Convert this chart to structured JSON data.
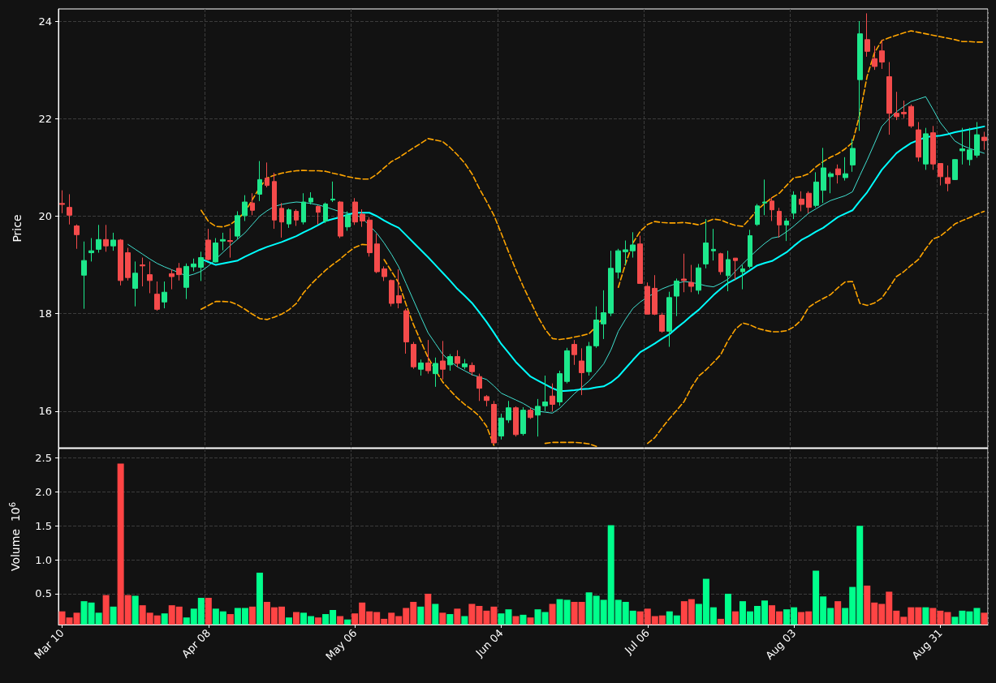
{
  "chart_data": [
    {
      "type": "candlestick",
      "ylabel": "Price",
      "categories": [
        null,
        null,
        null,
        null,
        null,
        null,
        null,
        null,
        null,
        null,
        null,
        null,
        null,
        null,
        null,
        null,
        null,
        null,
        null,
        null,
        null,
        null,
        null,
        null,
        null,
        null,
        null,
        null,
        null,
        null,
        null,
        null,
        null,
        null,
        null,
        null,
        null,
        null,
        null,
        null,
        null,
        null,
        null,
        null,
        null,
        null,
        null,
        null,
        null,
        null,
        null,
        null,
        null,
        null,
        null,
        null,
        null,
        null,
        null,
        null,
        null,
        null,
        null,
        null,
        null,
        null,
        null,
        null,
        null,
        null,
        null,
        null,
        null,
        null,
        null,
        null,
        null,
        null,
        null,
        null,
        null,
        null,
        null,
        null,
        null,
        null,
        null,
        null,
        null,
        null,
        null,
        null,
        null,
        null,
        null,
        null,
        null,
        null,
        null,
        null,
        null,
        null,
        null,
        null,
        null,
        null,
        null,
        null,
        null,
        null,
        null,
        null,
        null,
        null,
        null,
        null,
        null,
        null,
        null,
        null,
        null,
        null,
        null,
        null,
        null,
        null,
        null
      ],
      "ylim": [
        15.25,
        24.25
      ],
      "yticks": [
        16,
        18,
        20,
        22,
        24
      ],
      "grid": true,
      "tick_labels": "y",
      "marker": "none",
      "series": [
        {
          "type": "candlestick",
          "ohlc": [
            [
              20.26,
              20.53,
              20.06,
              20.24
            ],
            [
              20.18,
              20.45,
              19.83,
              20.02
            ],
            [
              19.8,
              19.83,
              19.33,
              19.62
            ],
            [
              18.79,
              19.48,
              18.1,
              19.09
            ],
            [
              19.25,
              19.55,
              19.07,
              19.29
            ],
            [
              19.32,
              19.82,
              19.25,
              19.52
            ],
            [
              19.52,
              19.82,
              19.27,
              19.39
            ],
            [
              19.39,
              19.66,
              19.29,
              19.51
            ],
            [
              19.51,
              19.53,
              18.58,
              18.68
            ],
            [
              19.25,
              19.35,
              18.68,
              18.74
            ],
            [
              18.52,
              19.07,
              18.15,
              18.83
            ],
            [
              19.0,
              19.15,
              18.56,
              18.98
            ],
            [
              18.8,
              19.07,
              18.42,
              18.68
            ],
            [
              18.4,
              18.66,
              18.06,
              18.09
            ],
            [
              18.24,
              18.66,
              18.11,
              18.44
            ],
            [
              18.82,
              18.91,
              18.5,
              18.76
            ],
            [
              18.93,
              19.04,
              18.68,
              18.8
            ],
            [
              18.54,
              19.03,
              18.3,
              18.97
            ],
            [
              18.96,
              19.13,
              18.87,
              19.02
            ],
            [
              18.95,
              19.27,
              18.67,
              19.15
            ],
            [
              19.51,
              19.74,
              19.09,
              19.11
            ],
            [
              19.06,
              19.55,
              19.05,
              19.45
            ],
            [
              19.49,
              19.66,
              19.3,
              19.52
            ],
            [
              19.5,
              19.75,
              19.15,
              19.48
            ],
            [
              19.59,
              20.1,
              19.53,
              20.01
            ],
            [
              20.01,
              20.43,
              19.9,
              20.29
            ],
            [
              20.27,
              20.47,
              20.02,
              20.12
            ],
            [
              20.45,
              21.13,
              20.31,
              20.75
            ],
            [
              20.78,
              21.1,
              20.59,
              20.63
            ],
            [
              20.71,
              20.89,
              19.74,
              19.92
            ],
            [
              20.16,
              20.27,
              19.56,
              19.88
            ],
            [
              19.84,
              20.16,
              19.76,
              20.13
            ],
            [
              20.1,
              20.14,
              19.8,
              19.92
            ],
            [
              19.88,
              20.47,
              19.83,
              20.29
            ],
            [
              20.29,
              20.49,
              20.24,
              20.37
            ],
            [
              20.2,
              20.22,
              19.83,
              20.08
            ],
            [
              19.9,
              20.28,
              19.86,
              20.25
            ],
            [
              20.33,
              20.71,
              20.29,
              20.35
            ],
            [
              20.29,
              20.31,
              19.55,
              19.59
            ],
            [
              19.78,
              20.1,
              19.7,
              20.02
            ],
            [
              20.29,
              20.37,
              19.82,
              19.88
            ],
            [
              20.04,
              20.14,
              19.78,
              19.9
            ],
            [
              19.92,
              19.98,
              19.17,
              19.25
            ],
            [
              19.43,
              19.64,
              18.83,
              18.86
            ],
            [
              18.92,
              18.97,
              18.67,
              18.76
            ],
            [
              18.68,
              18.7,
              18.15,
              18.21
            ],
            [
              18.37,
              18.91,
              18.11,
              18.22
            ],
            [
              18.06,
              18.1,
              17.18,
              17.42
            ],
            [
              17.37,
              17.42,
              16.87,
              16.91
            ],
            [
              16.86,
              17.06,
              16.73,
              16.99
            ],
            [
              16.99,
              17.46,
              16.77,
              16.83
            ],
            [
              16.77,
              17.1,
              16.5,
              16.98
            ],
            [
              17.03,
              17.44,
              16.65,
              16.86
            ],
            [
              16.95,
              17.17,
              16.83,
              17.12
            ],
            [
              17.12,
              17.25,
              16.9,
              16.98
            ],
            [
              16.91,
              17.07,
              16.86,
              16.97
            ],
            [
              16.94,
              17.0,
              16.73,
              16.81
            ],
            [
              16.71,
              16.77,
              16.21,
              16.47
            ],
            [
              16.3,
              16.33,
              16.1,
              16.22
            ],
            [
              16.14,
              16.21,
              15.32,
              15.35
            ],
            [
              15.49,
              15.95,
              15.42,
              15.86
            ],
            [
              15.82,
              16.21,
              15.76,
              16.07
            ],
            [
              16.07,
              16.1,
              15.48,
              15.52
            ],
            [
              15.54,
              16.08,
              15.5,
              16.02
            ],
            [
              16.02,
              16.07,
              15.84,
              15.87
            ],
            [
              15.92,
              16.25,
              15.48,
              16.1
            ],
            [
              16.11,
              16.73,
              16.0,
              16.19
            ],
            [
              16.31,
              16.57,
              16.0,
              16.14
            ],
            [
              16.19,
              16.83,
              16.11,
              16.77
            ],
            [
              16.61,
              17.3,
              16.57,
              17.24
            ],
            [
              17.37,
              17.46,
              16.95,
              17.16
            ],
            [
              17.03,
              17.29,
              16.33,
              16.79
            ],
            [
              16.81,
              17.42,
              16.73,
              17.33
            ],
            [
              17.34,
              18.15,
              17.3,
              17.87
            ],
            [
              17.79,
              18.48,
              17.48,
              18.02
            ],
            [
              18.01,
              19.29,
              17.95,
              18.93
            ],
            [
              18.85,
              19.33,
              18.72,
              19.29
            ],
            [
              19.27,
              19.5,
              19.0,
              19.31
            ],
            [
              19.29,
              19.67,
              19.15,
              19.41
            ],
            [
              19.43,
              19.6,
              18.62,
              18.62
            ],
            [
              18.56,
              18.64,
              17.99,
              17.99
            ],
            [
              18.52,
              18.79,
              17.97,
              17.99
            ],
            [
              17.97,
              18.02,
              17.61,
              17.64
            ],
            [
              17.64,
              18.45,
              17.32,
              18.33
            ],
            [
              18.36,
              18.72,
              17.95,
              18.67
            ],
            [
              18.71,
              19.23,
              18.44,
              18.68
            ],
            [
              18.64,
              19.0,
              18.44,
              18.56
            ],
            [
              18.48,
              19.02,
              18.4,
              18.94
            ],
            [
              19.02,
              19.94,
              18.93,
              19.45
            ],
            [
              19.29,
              19.74,
              19.09,
              19.32
            ],
            [
              19.23,
              19.25,
              18.8,
              18.86
            ],
            [
              18.78,
              19.29,
              18.46,
              19.11
            ],
            [
              19.14,
              19.14,
              18.68,
              19.09
            ],
            [
              18.86,
              19.0,
              18.5,
              18.92
            ],
            [
              18.97,
              19.72,
              18.93,
              19.6
            ],
            [
              19.83,
              20.25,
              19.8,
              20.21
            ],
            [
              20.27,
              20.75,
              20.02,
              20.29
            ],
            [
              20.31,
              20.39,
              19.9,
              20.13
            ],
            [
              20.1,
              20.17,
              19.56,
              19.82
            ],
            [
              19.82,
              19.96,
              19.49,
              19.9
            ],
            [
              20.06,
              20.51,
              19.94,
              20.43
            ],
            [
              20.35,
              20.51,
              20.1,
              20.24
            ],
            [
              20.47,
              20.51,
              20.06,
              20.18
            ],
            [
              20.22,
              20.9,
              20.18,
              20.7
            ],
            [
              20.53,
              21.4,
              20.27,
              20.99
            ],
            [
              20.81,
              20.91,
              20.47,
              20.87
            ],
            [
              20.97,
              21.06,
              20.67,
              20.85
            ],
            [
              20.79,
              21.21,
              20.73,
              20.87
            ],
            [
              21.05,
              21.58,
              20.91,
              21.39
            ],
            [
              22.8,
              24.0,
              21.75,
              23.74
            ],
            [
              23.62,
              24.16,
              23.27,
              23.38
            ],
            [
              23.23,
              23.49,
              23.0,
              23.07
            ],
            [
              23.39,
              23.62,
              23.02,
              23.16
            ],
            [
              22.86,
              23.16,
              21.67,
              22.11
            ],
            [
              22.11,
              22.55,
              21.97,
              22.04
            ],
            [
              22.13,
              22.37,
              22.01,
              22.1
            ],
            [
              22.25,
              22.29,
              21.81,
              21.85
            ],
            [
              21.77,
              21.93,
              21.12,
              21.21
            ],
            [
              21.07,
              21.81,
              20.95,
              21.69
            ],
            [
              21.71,
              21.85,
              20.95,
              21.07
            ],
            [
              21.08,
              21.08,
              20.63,
              20.81
            ],
            [
              20.79,
              21.04,
              20.51,
              20.67
            ],
            [
              20.75,
              21.17,
              20.74,
              21.16
            ],
            [
              21.34,
              21.81,
              21.06,
              21.38
            ],
            [
              21.16,
              21.81,
              21.04,
              21.36
            ],
            [
              21.25,
              21.93,
              21.2,
              21.67
            ],
            [
              21.62,
              21.73,
              21.36,
              21.55
            ]
          ],
          "colors": [
            "#f44b4b",
            "#f44b4b",
            "#f44b4b",
            "#1de88c",
            "#1de88c",
            "#1de88c",
            "#f44b4b",
            "#1de88c",
            "#f44b4b",
            "#f44b4b",
            "#1de88c",
            "#f44b4b",
            "#f44b4b",
            "#f44b4b",
            "#1de88c",
            "#f44b4b",
            "#f44b4b",
            "#1de88c",
            "#1de88c",
            "#1de88c",
            "#f44b4b",
            "#1de88c",
            "#1de88c",
            "#f44b4b",
            "#1de88c",
            "#1de88c",
            "#f44b4b",
            "#1de88c",
            "#f44b4b",
            "#f44b4b",
            "#f44b4b",
            "#1de88c",
            "#f44b4b",
            "#1de88c",
            "#1de88c",
            "#f44b4b",
            "#1de88c",
            "#1de88c",
            "#f44b4b",
            "#1de88c",
            "#f44b4b",
            "#f44b4b",
            "#f44b4b",
            "#f44b4b",
            "#f44b4b",
            "#f44b4b",
            "#f44b4b",
            "#f44b4b",
            "#f44b4b",
            "#1de88c",
            "#f44b4b",
            "#1de88c",
            "#f44b4b",
            "#1de88c",
            "#f44b4b",
            "#1de88c",
            "#f44b4b",
            "#f44b4b",
            "#f44b4b",
            "#f44b4b",
            "#1de88c",
            "#1de88c",
            "#f44b4b",
            "#1de88c",
            "#f44b4b",
            "#1de88c",
            "#1de88c",
            "#f44b4b",
            "#1de88c",
            "#1de88c",
            "#f44b4b",
            "#f44b4b",
            "#1de88c",
            "#1de88c",
            "#1de88c",
            "#1de88c",
            "#1de88c",
            "#1de88c",
            "#1de88c",
            "#f44b4b",
            "#f44b4b",
            "#f44b4b",
            "#f44b4b",
            "#1de88c",
            "#1de88c",
            "#f44b4b",
            "#f44b4b",
            "#1de88c",
            "#1de88c",
            "#1de88c",
            "#f44b4b",
            "#1de88c",
            "#f44b4b",
            "#1de88c",
            "#1de88c",
            "#1de88c",
            "#1de88c",
            "#f44b4b",
            "#f44b4b",
            "#1de88c",
            "#1de88c",
            "#f44b4b",
            "#f44b4b",
            "#1de88c",
            "#1de88c",
            "#1de88c",
            "#f44b4b",
            "#1de88c",
            "#1de88c",
            "#1de88c",
            "#f44b4b",
            "#f44b4b",
            "#f44b4b",
            "#f44b4b",
            "#f44b4b",
            "#f44b4b",
            "#f44b4b",
            "#f44b4b",
            "#1de88c",
            "#f44b4b",
            "#f44b4b",
            "#f44b4b",
            "#1de88c",
            "#1de88c",
            "#1de88c",
            "#1de88c",
            "#f44b4b"
          ]
        },
        {
          "type": "line",
          "color": "#40e0d0",
          "values": [
            null,
            null,
            null,
            null,
            null,
            null,
            null,
            null,
            null,
            19.42,
            19.32,
            19.22,
            19.12,
            19.03,
            18.96,
            18.9,
            18.84,
            18.77,
            18.81,
            18.87,
            18.98,
            19.12,
            19.26,
            19.4,
            19.53,
            19.66,
            19.83,
            20.0,
            20.11,
            20.2,
            20.24,
            20.27,
            20.29,
            20.28,
            20.26,
            20.23,
            20.19,
            20.14,
            20.09,
            20.06,
            20.04,
            19.96,
            19.81,
            19.65,
            19.45,
            19.22,
            18.96,
            18.62,
            18.28,
            17.94,
            17.61,
            17.39,
            17.17,
            17.03,
            16.91,
            16.83,
            16.75,
            16.7,
            16.65,
            16.52,
            16.37,
            16.3,
            16.23,
            16.16,
            16.07,
            16.0,
            15.98,
            15.96,
            16.06,
            16.21,
            16.36,
            16.49,
            16.62,
            16.79,
            16.97,
            17.26,
            17.64,
            17.89,
            18.11,
            18.24,
            18.34,
            18.43,
            18.51,
            18.57,
            18.62,
            18.66,
            18.64,
            18.61,
            18.57,
            18.55,
            18.62,
            18.71,
            18.87,
            19.02,
            19.17,
            19.31,
            19.44,
            19.55,
            19.58,
            19.68,
            19.8,
            19.93,
            20.06,
            20.15,
            20.24,
            20.32,
            20.37,
            20.42,
            20.5,
            20.83,
            21.15,
            21.49,
            21.84,
            22.0,
            22.14,
            22.25,
            22.35,
            22.4,
            22.45,
            22.19,
            21.92,
            21.73,
            21.54,
            21.45,
            21.39,
            21.34,
            21.29
          ]
        },
        {
          "type": "line",
          "color": "#00ffff",
          "values": [
            null,
            null,
            null,
            null,
            null,
            null,
            null,
            null,
            null,
            null,
            null,
            null,
            null,
            null,
            null,
            null,
            null,
            null,
            null,
            19.12,
            19.06,
            19.0,
            19.03,
            19.06,
            19.09,
            19.17,
            19.24,
            19.31,
            19.37,
            19.42,
            19.47,
            19.53,
            19.59,
            19.67,
            19.74,
            19.82,
            19.9,
            19.94,
            19.98,
            20.03,
            20.07,
            20.07,
            20.07,
            20.0,
            19.91,
            19.83,
            19.76,
            19.61,
            19.46,
            19.31,
            19.16,
            19.0,
            18.84,
            18.68,
            18.51,
            18.37,
            18.22,
            18.03,
            17.83,
            17.61,
            17.38,
            17.2,
            17.01,
            16.86,
            16.71,
            16.63,
            16.55,
            16.47,
            16.41,
            16.42,
            16.43,
            16.45,
            16.46,
            16.49,
            16.51,
            16.59,
            16.71,
            16.88,
            17.05,
            17.21,
            17.3,
            17.39,
            17.49,
            17.58,
            17.71,
            17.83,
            17.96,
            18.08,
            18.23,
            18.38,
            18.51,
            18.63,
            18.71,
            18.79,
            18.89,
            18.99,
            19.04,
            19.08,
            19.17,
            19.26,
            19.39,
            19.51,
            19.59,
            19.68,
            19.76,
            19.87,
            19.98,
            20.05,
            20.12,
            20.31,
            20.49,
            20.72,
            20.95,
            21.12,
            21.29,
            21.4,
            21.5,
            21.56,
            21.62,
            21.64,
            21.65,
            21.68,
            21.72,
            21.75,
            21.78,
            21.81,
            21.84
          ]
        },
        {
          "type": "line",
          "color": "#ffa500",
          "line_style": "dashed",
          "values": [
            null,
            null,
            null,
            null,
            null,
            null,
            null,
            null,
            null,
            null,
            null,
            null,
            null,
            null,
            null,
            null,
            null,
            null,
            null,
            20.12,
            19.89,
            19.79,
            19.78,
            19.83,
            19.94,
            20.09,
            20.34,
            20.59,
            20.78,
            20.84,
            20.88,
            20.91,
            20.93,
            20.94,
            20.93,
            20.93,
            20.92,
            20.88,
            20.85,
            20.81,
            20.78,
            20.76,
            20.76,
            20.86,
            20.99,
            21.12,
            21.2,
            21.3,
            21.4,
            21.49,
            21.59,
            21.56,
            21.53,
            21.41,
            21.26,
            21.09,
            20.87,
            20.57,
            20.3,
            20.02,
            19.65,
            19.27,
            18.9,
            18.56,
            18.25,
            17.94,
            17.68,
            17.49,
            17.47,
            17.49,
            17.52,
            17.55,
            17.59,
            17.74,
            17.94,
            null,
            18.54,
            19.03,
            19.45,
            19.69,
            19.83,
            19.89,
            19.87,
            19.86,
            19.86,
            19.87,
            19.85,
            19.82,
            19.88,
            19.94,
            19.92,
            19.86,
            19.81,
            19.79,
            19.95,
            20.13,
            20.26,
            20.38,
            20.47,
            20.63,
            20.79,
            20.81,
            20.87,
            21.01,
            21.12,
            21.21,
            21.28,
            21.38,
            21.51,
            22.09,
            22.87,
            23.35,
            23.6,
            23.66,
            23.71,
            23.76,
            23.8,
            23.77,
            23.74,
            23.71,
            23.68,
            23.65,
            23.62,
            23.58,
            23.58,
            23.57,
            23.57
          ]
        },
        {
          "type": "line",
          "color": "#ffa500",
          "line_style": "dashed",
          "values": [
            null,
            null,
            null,
            null,
            null,
            null,
            null,
            null,
            null,
            null,
            null,
            null,
            null,
            null,
            null,
            null,
            null,
            null,
            null,
            18.09,
            18.17,
            18.25,
            18.25,
            18.24,
            18.18,
            18.09,
            17.99,
            17.9,
            17.88,
            17.93,
            17.99,
            18.08,
            18.21,
            18.43,
            18.6,
            18.75,
            18.89,
            19.01,
            19.12,
            19.25,
            19.36,
            19.42,
            19.41,
            null,
            19.11,
            18.87,
            18.63,
            18.19,
            17.78,
            17.44,
            17.1,
            16.85,
            16.6,
            16.43,
            16.27,
            16.14,
            16.03,
            15.9,
            15.69,
            15.3,
            null,
            null,
            null,
            null,
            null,
            null,
            15.34,
            15.36,
            15.36,
            15.36,
            15.36,
            15.35,
            15.33,
            15.28,
            null,
            null,
            null,
            null,
            null,
            null,
            15.34,
            15.46,
            15.66,
            15.85,
            16.02,
            16.2,
            16.49,
            16.72,
            16.85,
            17.0,
            17.16,
            17.45,
            17.68,
            17.81,
            17.77,
            17.7,
            17.66,
            17.63,
            17.63,
            17.65,
            17.73,
            17.87,
            18.13,
            18.23,
            18.31,
            18.39,
            18.53,
            18.65,
            18.66,
            18.21,
            18.17,
            18.22,
            18.32,
            18.53,
            18.76,
            18.86,
            18.99,
            19.11,
            19.33,
            19.53,
            19.59,
            19.71,
            19.84,
            19.91,
            19.97,
            20.04,
            20.1
          ]
        }
      ]
    },
    {
      "type": "bar",
      "ylabel": "Volume  10$^{6}$",
      "categories": [
        "Mar 10",
        null,
        null,
        null,
        null,
        null,
        null,
        null,
        null,
        null,
        null,
        null,
        null,
        null,
        null,
        null,
        null,
        null,
        null,
        null,
        "Apr 08",
        null,
        null,
        null,
        null,
        null,
        null,
        null,
        null,
        null,
        null,
        null,
        null,
        null,
        null,
        null,
        null,
        null,
        null,
        null,
        "May 06",
        null,
        null,
        null,
        null,
        null,
        null,
        null,
        null,
        null,
        null,
        null,
        null,
        null,
        null,
        null,
        null,
        null,
        null,
        null,
        "Jun 04",
        null,
        null,
        null,
        null,
        null,
        null,
        null,
        null,
        null,
        null,
        null,
        null,
        null,
        null,
        null,
        null,
        null,
        null,
        null,
        "Jul 06",
        null,
        null,
        null,
        null,
        null,
        null,
        null,
        null,
        null,
        null,
        null,
        null,
        null,
        null,
        null,
        null,
        null,
        null,
        null,
        "Aug 03",
        null,
        null,
        null,
        null,
        null,
        null,
        null,
        null,
        null,
        null,
        null,
        null,
        null,
        null,
        null,
        null,
        null,
        null,
        null,
        "Aug 31",
        null,
        null,
        null,
        null,
        null,
        null
      ],
      "ylim": [
        0.045,
        2.64
      ],
      "yticks": [
        0.5,
        {
          "value": 1,
          "label": "1.0"
        },
        1.5,
        {
          "value": 2,
          "label": "2.0"
        },
        2.5
      ],
      "grid": true,
      "values": [
        0.24,
        0.15,
        0.22,
        0.39,
        0.37,
        0.22,
        0.48,
        0.31,
        2.42,
        0.48,
        0.47,
        0.33,
        0.22,
        0.18,
        0.21,
        0.33,
        0.31,
        0.15,
        0.28,
        0.44,
        0.44,
        0.28,
        0.24,
        0.2,
        0.29,
        0.29,
        0.31,
        0.81,
        0.38,
        0.3,
        0.31,
        0.15,
        0.23,
        0.22,
        0.17,
        0.15,
        0.2,
        0.26,
        0.17,
        0.12,
        0.21,
        0.37,
        0.24,
        0.23,
        0.13,
        0.22,
        0.17,
        0.29,
        0.38,
        0.31,
        0.5,
        0.35,
        0.22,
        0.2,
        0.28,
        0.17,
        0.35,
        0.32,
        0.25,
        0.31,
        0.21,
        0.27,
        0.17,
        0.19,
        0.15,
        0.27,
        0.23,
        0.35,
        0.42,
        0.41,
        0.38,
        0.38,
        0.52,
        0.47,
        0.41,
        1.51,
        0.41,
        0.38,
        0.25,
        0.24,
        0.28,
        0.17,
        0.18,
        0.24,
        0.18,
        0.39,
        0.42,
        0.35,
        0.72,
        0.3,
        0.13,
        0.5,
        0.24,
        0.39,
        0.24,
        0.32,
        0.4,
        0.33,
        0.24,
        0.27,
        0.3,
        0.23,
        0.24,
        0.84,
        0.46,
        0.29,
        0.39,
        0.29,
        0.6,
        1.5,
        0.62,
        0.37,
        0.35,
        0.53,
        0.25,
        0.16,
        0.3,
        0.3,
        0.3,
        0.29,
        0.25,
        0.23,
        0.16,
        0.25,
        0.24,
        0.29,
        0.22
      ],
      "colors": [
        "#ff4444",
        "#ff4444",
        "#ff4444",
        "#00ff8c",
        "#00ff8c",
        "#00ff8c",
        "#ff4444",
        "#00ff8c",
        "#ff4444",
        "#ff4444",
        "#00ff8c",
        "#ff4444",
        "#ff4444",
        "#ff4444",
        "#00ff8c",
        "#ff4444",
        "#ff4444",
        "#00ff8c",
        "#00ff8c",
        "#00ff8c",
        "#ff4444",
        "#00ff8c",
        "#00ff8c",
        "#ff4444",
        "#00ff8c",
        "#00ff8c",
        "#ff4444",
        "#00ff8c",
        "#ff4444",
        "#ff4444",
        "#ff4444",
        "#00ff8c",
        "#ff4444",
        "#00ff8c",
        "#00ff8c",
        "#ff4444",
        "#00ff8c",
        "#00ff8c",
        "#ff4444",
        "#00ff8c",
        "#ff4444",
        "#ff4444",
        "#ff4444",
        "#ff4444",
        "#ff4444",
        "#ff4444",
        "#ff4444",
        "#ff4444",
        "#ff4444",
        "#00ff8c",
        "#ff4444",
        "#00ff8c",
        "#ff4444",
        "#00ff8c",
        "#ff4444",
        "#00ff8c",
        "#ff4444",
        "#ff4444",
        "#ff4444",
        "#ff4444",
        "#00ff8c",
        "#00ff8c",
        "#ff4444",
        "#00ff8c",
        "#ff4444",
        "#00ff8c",
        "#00ff8c",
        "#ff4444",
        "#00ff8c",
        "#00ff8c",
        "#ff4444",
        "#ff4444",
        "#00ff8c",
        "#00ff8c",
        "#00ff8c",
        "#00ff8c",
        "#00ff8c",
        "#00ff8c",
        "#00ff8c",
        "#ff4444",
        "#ff4444",
        "#ff4444",
        "#ff4444",
        "#00ff8c",
        "#00ff8c",
        "#ff4444",
        "#ff4444",
        "#00ff8c",
        "#00ff8c",
        "#00ff8c",
        "#ff4444",
        "#00ff8c",
        "#ff4444",
        "#00ff8c",
        "#00ff8c",
        "#00ff8c",
        "#00ff8c",
        "#ff4444",
        "#ff4444",
        "#00ff8c",
        "#00ff8c",
        "#ff4444",
        "#ff4444",
        "#00ff8c",
        "#00ff8c",
        "#00ff8c",
        "#ff4444",
        "#00ff8c",
        "#00ff8c",
        "#00ff8c",
        "#ff4444",
        "#ff4444",
        "#ff4444",
        "#ff4444",
        "#ff4444",
        "#ff4444",
        "#ff4444",
        "#ff4444",
        "#00ff8c",
        "#ff4444",
        "#ff4444",
        "#ff4444",
        "#00ff8c",
        "#00ff8c",
        "#00ff8c",
        "#00ff8c",
        "#ff4444"
      ]
    }
  ]
}
